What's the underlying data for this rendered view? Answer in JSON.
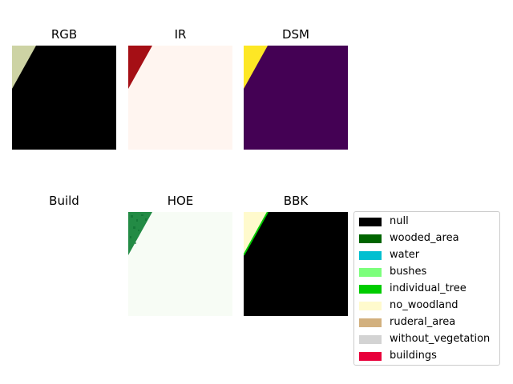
{
  "chart_data": {
    "type": "image-grid",
    "panels": [
      {
        "title": "RGB",
        "colors": {
          "corner": "#cdd3a4",
          "main": "#000000"
        }
      },
      {
        "title": "IR",
        "colors": {
          "corner": "#a50f15",
          "main": "#fff5f0"
        }
      },
      {
        "title": "DSM",
        "colors": {
          "corner": "#fde725",
          "main": "#440154"
        }
      },
      {
        "title": "Build",
        "colors": {}
      },
      {
        "title": "HOE",
        "colors": {
          "corner": "#238b45",
          "main": "#f7fcf5"
        }
      },
      {
        "title": "BBK",
        "colors": {
          "corner": "#fffacd",
          "main": "#000000",
          "edge": "#00cc00"
        }
      }
    ],
    "legend": [
      {
        "label": "null",
        "color": "#000000"
      },
      {
        "label": "wooded_area",
        "color": "#006400"
      },
      {
        "label": "water",
        "color": "#00bfd0"
      },
      {
        "label": "bushes",
        "color": "#7cff7c"
      },
      {
        "label": "individual_tree",
        "color": "#00cc00"
      },
      {
        "label": "no_woodland",
        "color": "#fffacd"
      },
      {
        "label": "ruderal_area",
        "color": "#d2b07e"
      },
      {
        "label": "without_vegetation",
        "color": "#d3d3d3"
      },
      {
        "label": "buildings",
        "color": "#e8003a"
      }
    ]
  }
}
